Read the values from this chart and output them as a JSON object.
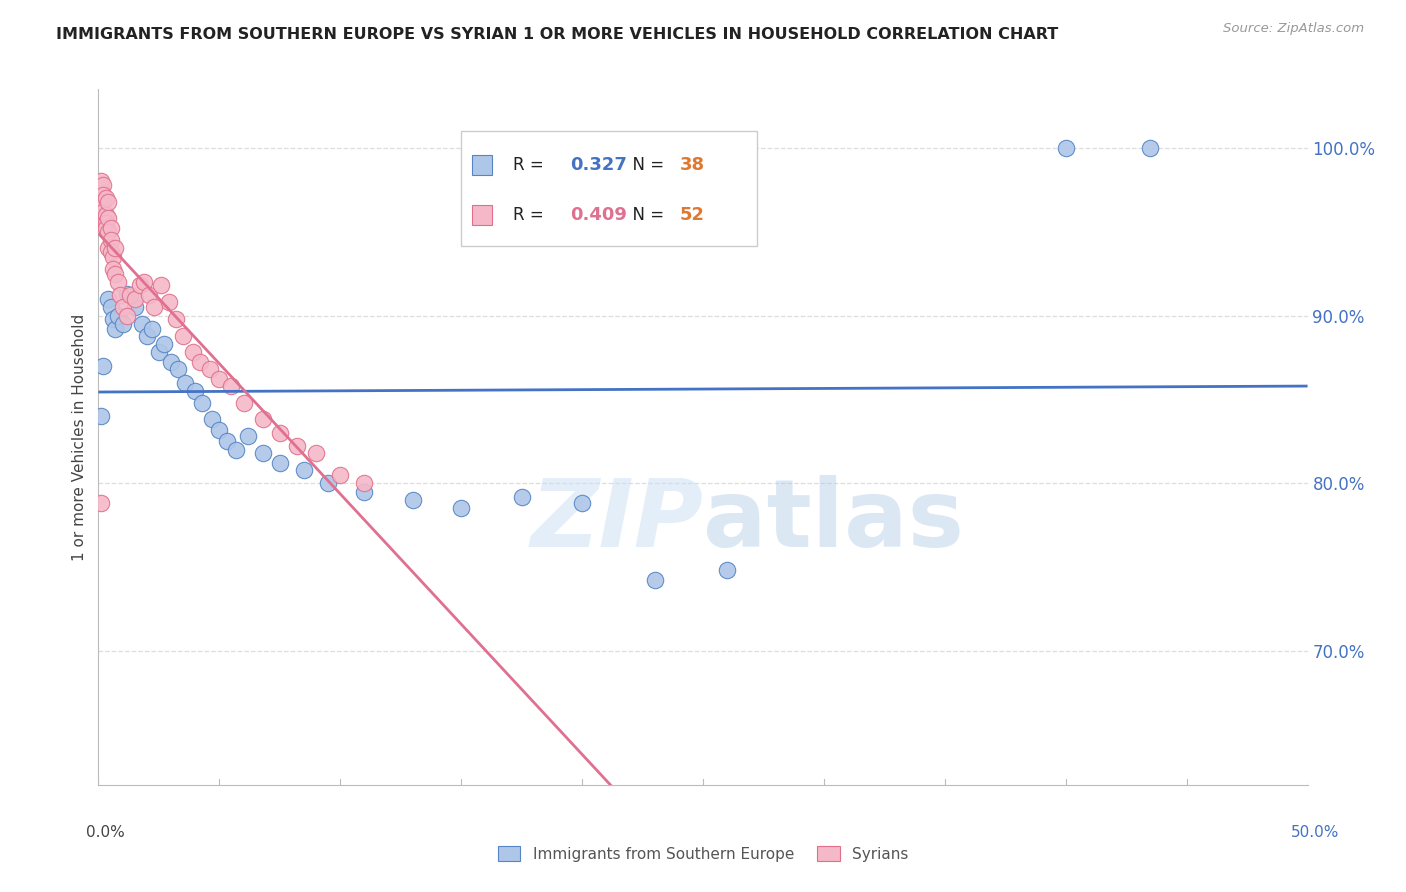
{
  "title": "IMMIGRANTS FROM SOUTHERN EUROPE VS SYRIAN 1 OR MORE VEHICLES IN HOUSEHOLD CORRELATION CHART",
  "source": "Source: ZipAtlas.com",
  "ylabel": "1 or more Vehicles in Household",
  "xlim": [
    0.0,
    0.5
  ],
  "ylim": [
    0.62,
    1.035
  ],
  "legend_blue_r": "0.327",
  "legend_blue_n": "38",
  "legend_pink_r": "0.409",
  "legend_pink_n": "52",
  "legend_label_blue": "Immigrants from Southern Europe",
  "legend_label_pink": "Syrians",
  "blue_color": "#aec6e8",
  "pink_color": "#f4b8c8",
  "blue_edge_color": "#5585c5",
  "pink_edge_color": "#e0708a",
  "blue_line_color": "#4472c4",
  "pink_line_color": "#e07090",
  "n_color": "#e07830",
  "blue_scatter": [
    [
      0.001,
      0.84
    ],
    [
      0.002,
      0.87
    ],
    [
      0.004,
      0.91
    ],
    [
      0.005,
      0.905
    ],
    [
      0.006,
      0.898
    ],
    [
      0.007,
      0.892
    ],
    [
      0.008,
      0.9
    ],
    [
      0.01,
      0.895
    ],
    [
      0.012,
      0.913
    ],
    [
      0.015,
      0.905
    ],
    [
      0.018,
      0.895
    ],
    [
      0.02,
      0.888
    ],
    [
      0.022,
      0.892
    ],
    [
      0.025,
      0.878
    ],
    [
      0.027,
      0.883
    ],
    [
      0.03,
      0.872
    ],
    [
      0.033,
      0.868
    ],
    [
      0.036,
      0.86
    ],
    [
      0.04,
      0.855
    ],
    [
      0.043,
      0.848
    ],
    [
      0.047,
      0.838
    ],
    [
      0.05,
      0.832
    ],
    [
      0.053,
      0.825
    ],
    [
      0.057,
      0.82
    ],
    [
      0.062,
      0.828
    ],
    [
      0.068,
      0.818
    ],
    [
      0.075,
      0.812
    ],
    [
      0.085,
      0.808
    ],
    [
      0.095,
      0.8
    ],
    [
      0.11,
      0.795
    ],
    [
      0.13,
      0.79
    ],
    [
      0.15,
      0.785
    ],
    [
      0.175,
      0.792
    ],
    [
      0.2,
      0.788
    ],
    [
      0.23,
      0.742
    ],
    [
      0.26,
      0.748
    ],
    [
      0.4,
      1.0
    ],
    [
      0.435,
      1.0
    ]
  ],
  "pink_scatter": [
    [
      0.001,
      0.97
    ],
    [
      0.001,
      0.975
    ],
    [
      0.001,
      0.98
    ],
    [
      0.001,
      0.968
    ],
    [
      0.001,
      0.965
    ],
    [
      0.002,
      0.978
    ],
    [
      0.002,
      0.972
    ],
    [
      0.002,
      0.968
    ],
    [
      0.002,
      0.96
    ],
    [
      0.002,
      0.962
    ],
    [
      0.003,
      0.97
    ],
    [
      0.003,
      0.96
    ],
    [
      0.003,
      0.955
    ],
    [
      0.003,
      0.952
    ],
    [
      0.004,
      0.968
    ],
    [
      0.004,
      0.958
    ],
    [
      0.004,
      0.95
    ],
    [
      0.004,
      0.94
    ],
    [
      0.005,
      0.952
    ],
    [
      0.005,
      0.945
    ],
    [
      0.005,
      0.938
    ],
    [
      0.006,
      0.935
    ],
    [
      0.006,
      0.928
    ],
    [
      0.007,
      0.94
    ],
    [
      0.007,
      0.925
    ],
    [
      0.008,
      0.92
    ],
    [
      0.009,
      0.912
    ],
    [
      0.01,
      0.905
    ],
    [
      0.012,
      0.9
    ],
    [
      0.013,
      0.912
    ],
    [
      0.015,
      0.91
    ],
    [
      0.017,
      0.918
    ],
    [
      0.019,
      0.92
    ],
    [
      0.021,
      0.912
    ],
    [
      0.023,
      0.905
    ],
    [
      0.026,
      0.918
    ],
    [
      0.029,
      0.908
    ],
    [
      0.032,
      0.898
    ],
    [
      0.035,
      0.888
    ],
    [
      0.039,
      0.878
    ],
    [
      0.042,
      0.872
    ],
    [
      0.046,
      0.868
    ],
    [
      0.05,
      0.862
    ],
    [
      0.055,
      0.858
    ],
    [
      0.06,
      0.848
    ],
    [
      0.068,
      0.838
    ],
    [
      0.075,
      0.83
    ],
    [
      0.082,
      0.822
    ],
    [
      0.09,
      0.818
    ],
    [
      0.1,
      0.805
    ],
    [
      0.11,
      0.8
    ],
    [
      0.001,
      0.788
    ]
  ],
  "watermark_zip": "ZIP",
  "watermark_atlas": "atlas",
  "background_color": "#ffffff",
  "grid_color": "#dddddd",
  "spine_color": "#bbbbbb"
}
